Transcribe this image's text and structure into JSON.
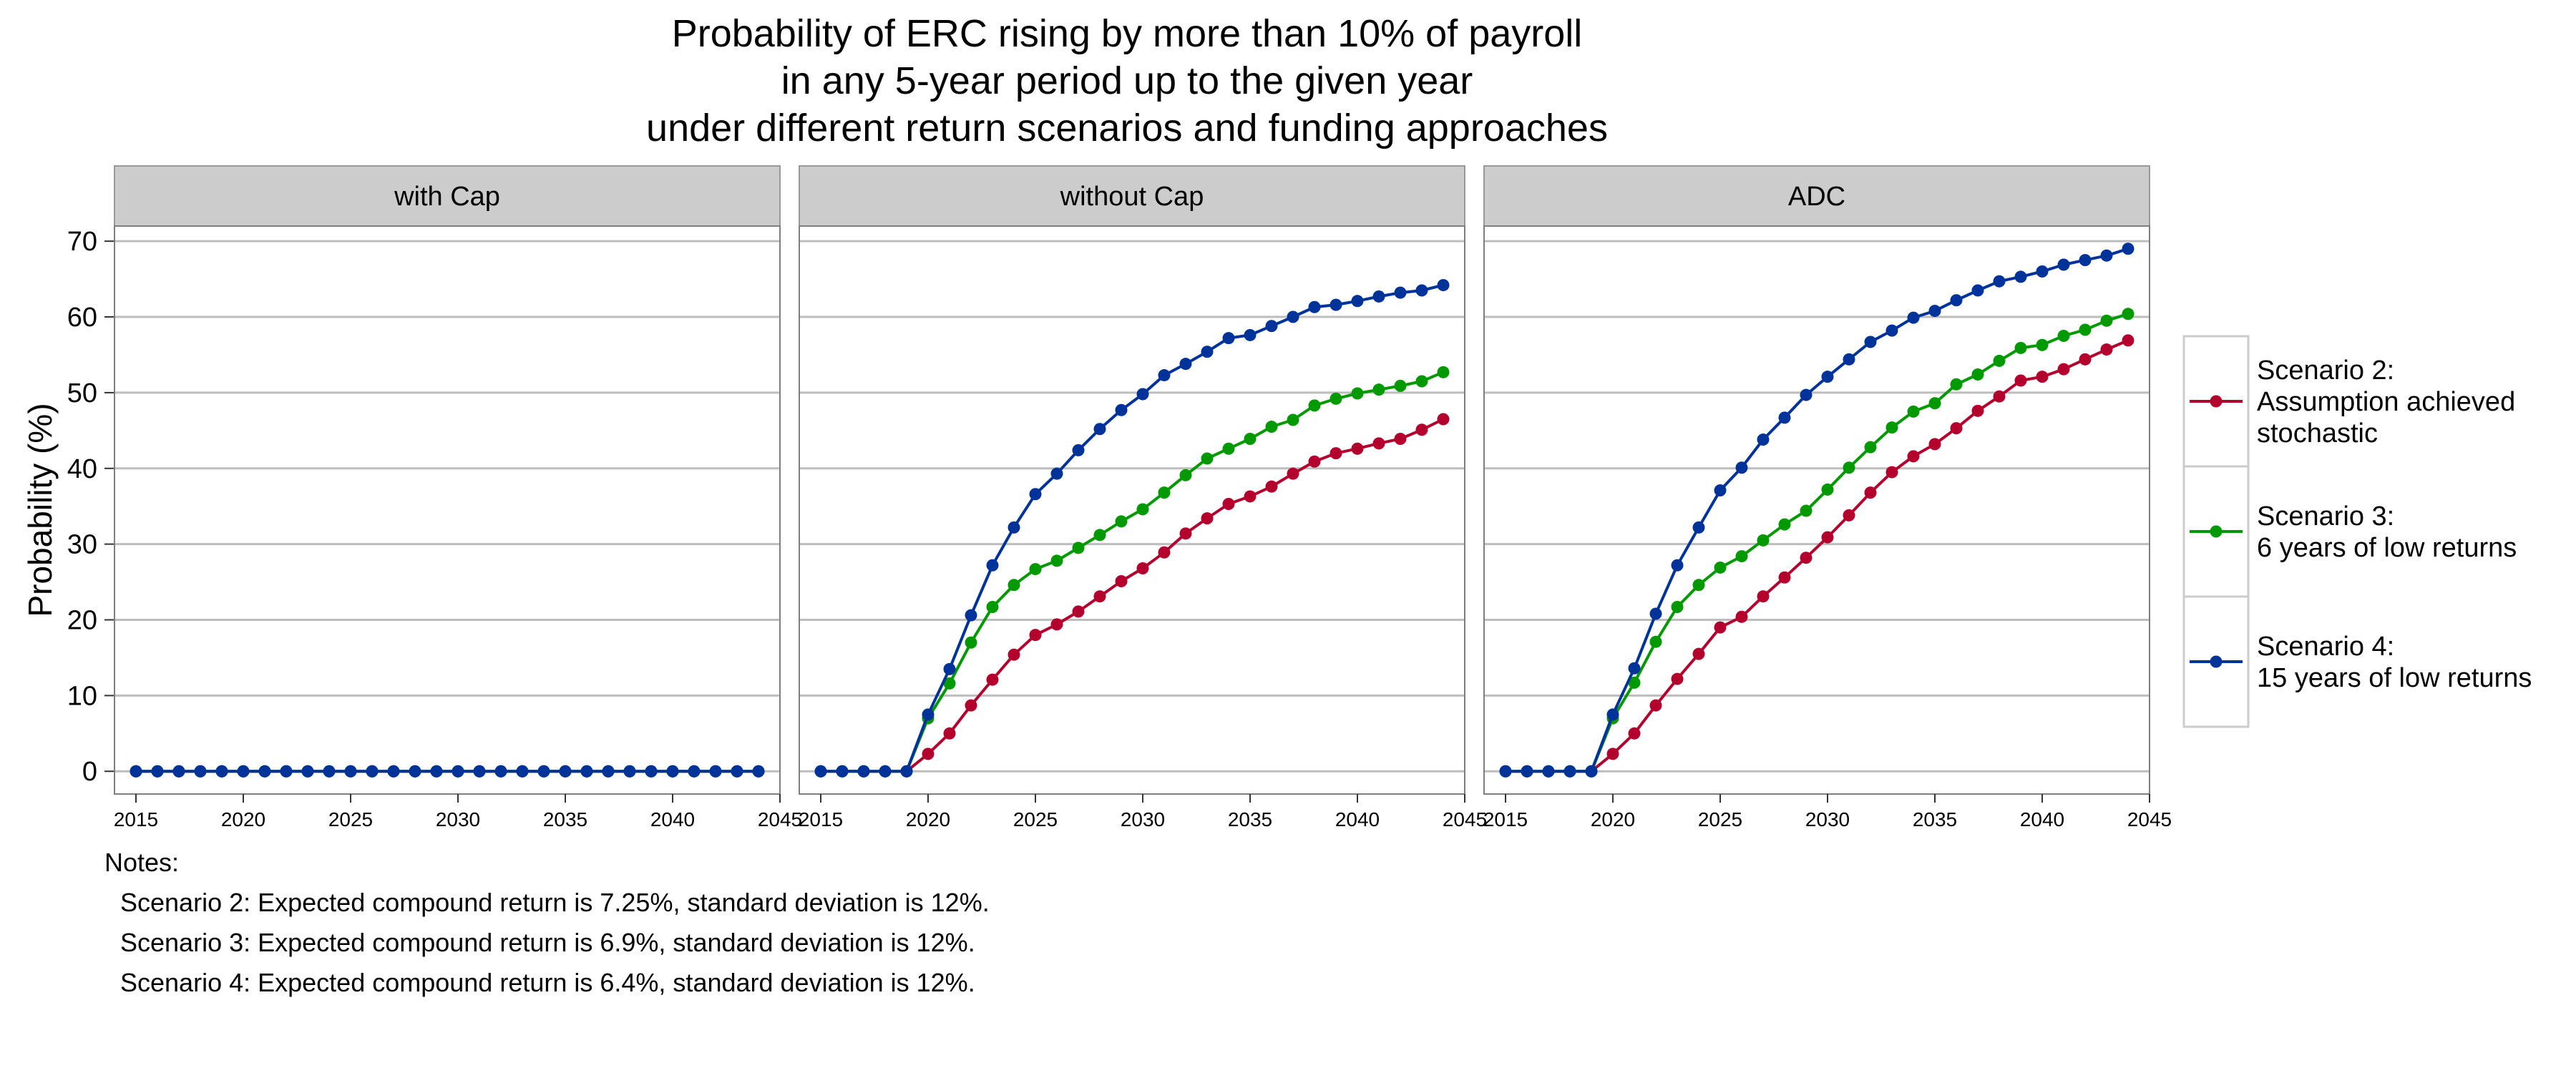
{
  "chart_data": {
    "type": "line",
    "title": [
      "Probability of ERC rising by more than 10% of payroll",
      "in any 5-year period up to the given year",
      "under different return scenarios and funding approaches"
    ],
    "ylabel": "Probability (%)",
    "xlabel": "",
    "xlim": [
      2014,
      2045
    ],
    "ylim": [
      -3,
      72
    ],
    "x_ticks": [
      2015,
      2020,
      2025,
      2030,
      2035,
      2040,
      2045
    ],
    "y_ticks": [
      0,
      10,
      20,
      30,
      40,
      50,
      60,
      70
    ],
    "grid": "horizontal",
    "legend_position": "right",
    "x": [
      2015,
      2016,
      2017,
      2018,
      2019,
      2020,
      2021,
      2022,
      2023,
      2024,
      2025,
      2026,
      2027,
      2028,
      2029,
      2030,
      2031,
      2032,
      2033,
      2034,
      2035,
      2036,
      2037,
      2038,
      2039,
      2040,
      2041,
      2042,
      2043,
      2044
    ],
    "legend": [
      {
        "key": "s2",
        "label": [
          "Scenario 2:",
          "Assumption achieved",
          "stochastic"
        ],
        "color": "#b3002d"
      },
      {
        "key": "s3",
        "label": [
          "Scenario 3:",
          "6 years of low returns"
        ],
        "color": "#009900"
      },
      {
        "key": "s4",
        "label": [
          "Scenario 4:",
          "15 years of low returns"
        ],
        "color": "#003399"
      }
    ],
    "panels": [
      {
        "name": "with Cap",
        "series": [
          {
            "key": "s2",
            "values": [
              0,
              0,
              0,
              0,
              0,
              0,
              0,
              0,
              0,
              0,
              0,
              0,
              0,
              0,
              0,
              0,
              0,
              0,
              0,
              0,
              0,
              0,
              0,
              0,
              0,
              0,
              0,
              0,
              0,
              0
            ]
          },
          {
            "key": "s3",
            "values": [
              0,
              0,
              0,
              0,
              0,
              0,
              0,
              0,
              0,
              0,
              0,
              0,
              0,
              0,
              0,
              0,
              0,
              0,
              0,
              0,
              0,
              0,
              0,
              0,
              0,
              0,
              0,
              0,
              0,
              0
            ]
          },
          {
            "key": "s4",
            "values": [
              0,
              0,
              0,
              0,
              0,
              0,
              0,
              0,
              0,
              0,
              0,
              0,
              0,
              0,
              0,
              0,
              0,
              0,
              0,
              0,
              0,
              0,
              0,
              0,
              0,
              0,
              0,
              0,
              0,
              0
            ]
          }
        ]
      },
      {
        "name": "without Cap",
        "series": [
          {
            "key": "s2",
            "values": [
              0,
              0,
              0,
              0,
              0,
              2.3,
              5,
              8.7,
              12.1,
              15.4,
              18,
              19.4,
              21.1,
              23.1,
              25.1,
              26.8,
              28.9,
              31.4,
              33.4,
              35.3,
              36.3,
              37.6,
              39.3,
              40.9,
              42,
              42.6,
              43.3,
              43.9,
              45.1,
              46.5
            ]
          },
          {
            "key": "s3",
            "values": [
              0,
              0,
              0,
              0,
              0,
              7,
              11.6,
              17,
              21.7,
              24.6,
              26.7,
              27.8,
              29.5,
              31.2,
              33,
              34.6,
              36.8,
              39.1,
              41.3,
              42.6,
              43.9,
              45.5,
              46.4,
              48.3,
              49.2,
              49.9,
              50.4,
              50.9,
              51.5,
              52.7
            ]
          },
          {
            "key": "s4",
            "values": [
              0,
              0,
              0,
              0,
              0,
              7.5,
              13.5,
              20.6,
              27.2,
              32.2,
              36.6,
              39.3,
              42.4,
              45.2,
              47.7,
              49.8,
              52.3,
              53.8,
              55.4,
              57.2,
              57.6,
              58.8,
              60,
              61.3,
              61.6,
              62.1,
              62.7,
              63.2,
              63.5,
              64.2
            ]
          }
        ]
      },
      {
        "name": "ADC",
        "series": [
          {
            "key": "s2",
            "values": [
              0,
              0,
              0,
              0,
              0,
              2.3,
              5,
              8.7,
              12.2,
              15.5,
              19,
              20.4,
              23.1,
              25.6,
              28.2,
              30.9,
              33.8,
              36.8,
              39.5,
              41.6,
              43.2,
              45.3,
              47.6,
              49.5,
              51.6,
              52.1,
              53.1,
              54.4,
              55.7,
              56.9
            ]
          },
          {
            "key": "s3",
            "values": [
              0,
              0,
              0,
              0,
              0,
              7,
              11.7,
              17.1,
              21.7,
              24.6,
              26.9,
              28.4,
              30.5,
              32.6,
              34.4,
              37.2,
              40.1,
              42.8,
              45.4,
              47.5,
              48.6,
              51.1,
              52.4,
              54.2,
              55.9,
              56.3,
              57.5,
              58.3,
              59.5,
              60.4
            ]
          },
          {
            "key": "s4",
            "values": [
              0,
              0,
              0,
              0,
              0,
              7.5,
              13.6,
              20.8,
              27.2,
              32.2,
              37.1,
              40.1,
              43.8,
              46.7,
              49.7,
              52.1,
              54.4,
              56.7,
              58.2,
              59.9,
              60.8,
              62.2,
              63.5,
              64.7,
              65.3,
              66,
              66.9,
              67.5,
              68.1,
              69
            ]
          }
        ]
      }
    ]
  },
  "notes": {
    "heading": "Notes:",
    "lines": [
      "Scenario 2: Expected compound return is 7.25%, standard deviation is 12%.",
      "Scenario 3: Expected compound return is 6.9%, standard deviation is 12%.",
      "Scenario 4: Expected compound return is 6.4%, standard deviation is 12%."
    ]
  }
}
